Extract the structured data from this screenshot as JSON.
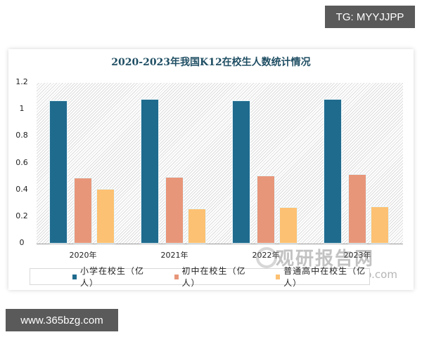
{
  "badges": {
    "top": "TG: MYYJJPP",
    "bottom": "www.365bzg.com"
  },
  "watermark": {
    "main": "观研报告网",
    "sub": "chinabaogao.com"
  },
  "colors": {
    "primary": "#1f6b8e",
    "middle": "#e8967a",
    "high": "#fdc173",
    "title": "#1f4e63"
  },
  "chart_data": {
    "type": "bar",
    "title": "2020-2023年我国K12在校生人数统计情况",
    "xlabel": "",
    "ylabel": "",
    "categories": [
      "2020年",
      "2021年",
      "2022年",
      "2023年"
    ],
    "series": [
      {
        "name": "小学在校生（亿人）",
        "color": "#1f6b8e",
        "values": [
          1.07,
          1.08,
          1.07,
          1.08
        ]
      },
      {
        "name": "初中在校生（亿人）",
        "color": "#e8967a",
        "values": [
          0.49,
          0.5,
          0.51,
          0.52
        ]
      },
      {
        "name": "普通高中在校生（亿人）",
        "color": "#fdc173",
        "values": [
          0.41,
          0.26,
          0.27,
          0.28
        ]
      }
    ],
    "ylim": [
      0,
      1.2
    ],
    "yticks": [
      "1.2",
      "1",
      "0.8",
      "0.6",
      "0.4",
      "0.2",
      "0"
    ],
    "grid": false,
    "legend_position": "bottom"
  }
}
